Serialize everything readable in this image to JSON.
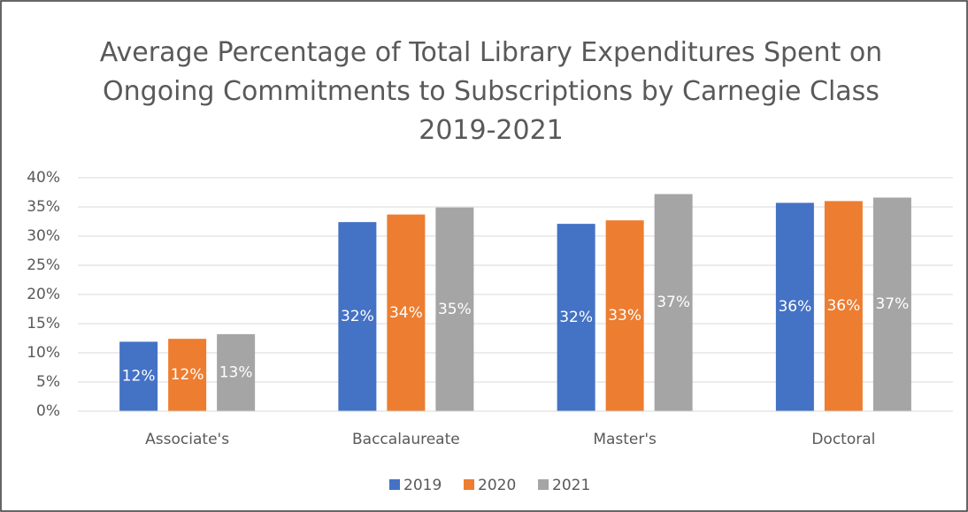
{
  "chart_data": {
    "type": "bar",
    "title": "Average Percentage of Total Library Expenditures Spent on Ongoing Commitments to Subscriptions by Carnegie Class 2019-2021",
    "categories": [
      "Associate's",
      "Baccalaureate",
      "Master's",
      "Doctoral"
    ],
    "series": [
      {
        "name": "2019",
        "color": "#4472c4",
        "values": [
          11.9,
          32.4,
          32.1,
          35.7
        ],
        "value_labels": [
          "12%",
          "32%",
          "32%",
          "36%"
        ]
      },
      {
        "name": "2020",
        "color": "#ed7d31",
        "values": [
          12.4,
          33.7,
          32.7,
          36.0
        ],
        "value_labels": [
          "12%",
          "34%",
          "33%",
          "36%"
        ]
      },
      {
        "name": "2021",
        "color": "#a5a5a5",
        "values": [
          13.2,
          34.9,
          37.2,
          36.6
        ],
        "value_labels": [
          "13%",
          "35%",
          "37%",
          "37%"
        ]
      }
    ],
    "ylim": [
      0,
      40
    ],
    "yticks": [
      {
        "value": 0,
        "label": "0%"
      },
      {
        "value": 5,
        "label": "5%"
      },
      {
        "value": 10,
        "label": "10%"
      },
      {
        "value": 15,
        "label": "15%"
      },
      {
        "value": 20,
        "label": "20%"
      },
      {
        "value": 25,
        "label": "25%"
      },
      {
        "value": 30,
        "label": "30%"
      },
      {
        "value": 35,
        "label": "35%"
      },
      {
        "value": 40,
        "label": "40%"
      }
    ],
    "grid": true,
    "legend": "bottom"
  }
}
